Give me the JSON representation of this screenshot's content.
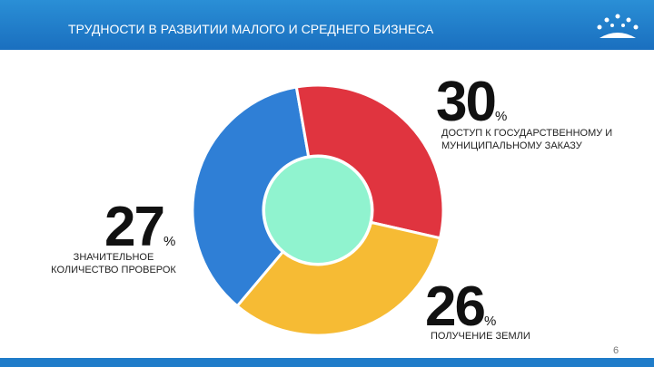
{
  "chart_data": {
    "type": "donut",
    "title": "ТРУДНОСТИ В РАЗВИТИИ МАЛОГО И СРЕДНЕГО БИЗНЕСА",
    "categories": [
      "ДОСТУП К ГОСУДАРСТВЕННОМУ И МУНИЦИПАЛЬНОМУ ЗАКАЗУ",
      "ПОЛУЧЕНИЕ ЗЕМЛИ",
      "ЗНАЧИТЕЛЬНОЕ КОЛИЧЕСТВО ПРОВЕРОК"
    ],
    "values": [
      30,
      26,
      27
    ],
    "unit": "%",
    "colors": [
      "#2f7fd6",
      "#e0343f",
      "#f6bb34"
    ],
    "center_color": "#90f3cf"
  },
  "page_number": "6"
}
